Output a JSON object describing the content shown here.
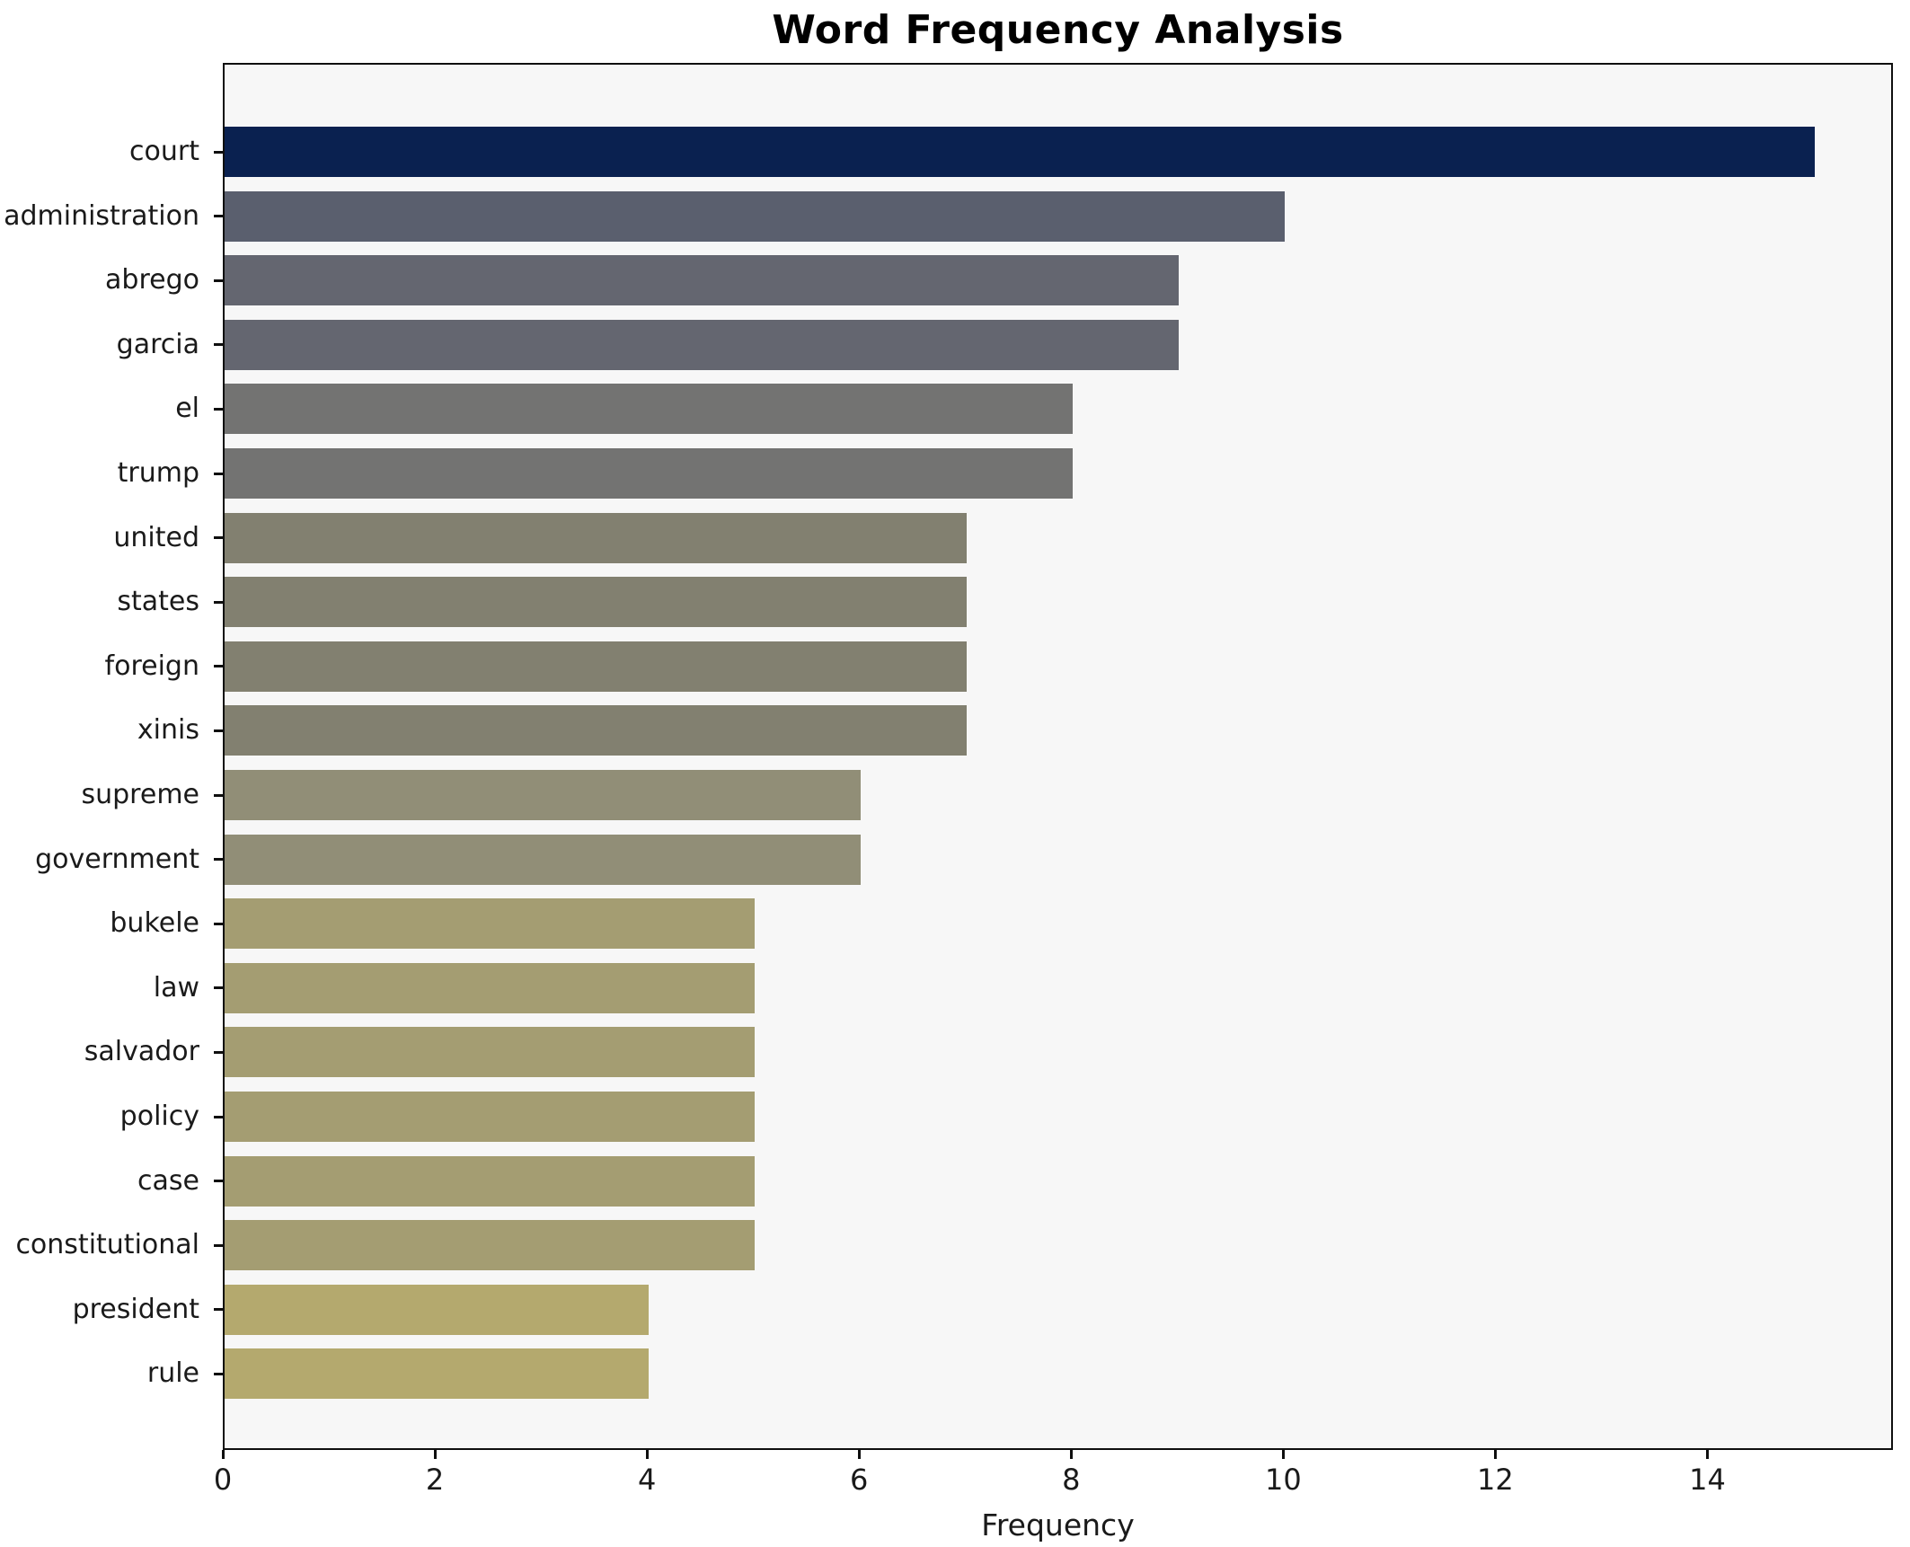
{
  "figure": {
    "background": "#ffffff",
    "plot_background": "#f7f7f7",
    "spine_color": "#0f0f0f",
    "text_color": "#1a1a1a"
  },
  "chart_data": {
    "type": "bar",
    "orientation": "horizontal",
    "title": "Word Frequency Analysis",
    "xlabel": "Frequency",
    "ylabel": "",
    "categories": [
      "court",
      "administration",
      "abrego",
      "garcia",
      "el",
      "trump",
      "united",
      "states",
      "foreign",
      "xinis",
      "supreme",
      "government",
      "bukele",
      "law",
      "salvador",
      "policy",
      "case",
      "constitutional",
      "president",
      "rule"
    ],
    "values": [
      15,
      10,
      9,
      9,
      8,
      8,
      7,
      7,
      7,
      7,
      6,
      6,
      5,
      5,
      5,
      5,
      5,
      5,
      4,
      4
    ],
    "bar_colors": [
      "#0a2150",
      "#5a5f6e",
      "#646670",
      "#646670",
      "#737372",
      "#737372",
      "#828070",
      "#828070",
      "#828070",
      "#828070",
      "#918e77",
      "#918e77",
      "#a49d72",
      "#a49d72",
      "#a49d72",
      "#a49d72",
      "#a49d72",
      "#a49d72",
      "#b4a96e",
      "#b4a96e"
    ],
    "xlim": [
      0,
      15.75
    ],
    "xticks": [
      0,
      2,
      4,
      6,
      8,
      10,
      12,
      14
    ],
    "grid": false,
    "legend": null
  }
}
